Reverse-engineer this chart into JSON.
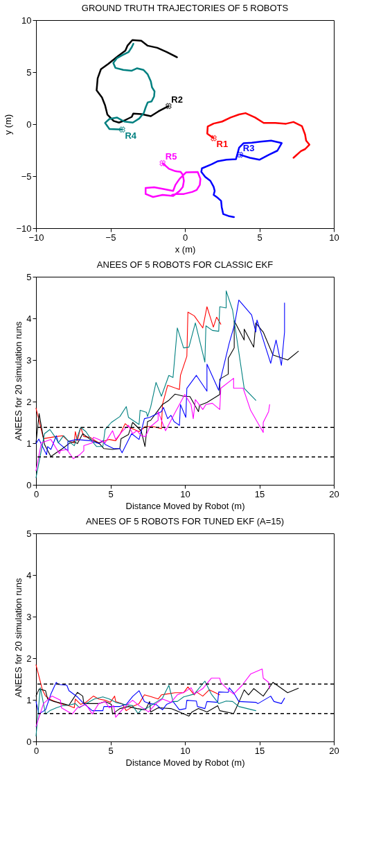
{
  "chart_data": [
    {
      "type": "line",
      "title": "GROUND TRUTH TRAJECTORIES OF 5 ROBOTS",
      "xlabel": "x (m)",
      "ylabel": "y (m)",
      "xlim": [
        -10,
        10
      ],
      "ylim": [
        -10,
        10
      ],
      "xticks": [
        -10,
        -5,
        0,
        5,
        10
      ],
      "yticks": [
        -10,
        -5,
        0,
        5,
        10
      ],
      "grid": false,
      "marker": "none",
      "line_style": "solid",
      "series": [
        {
          "name": "R1",
          "color": "#ff0000",
          "x": [
            1.93,
            1.5,
            1.53,
            1.93,
            2.5,
            3.07,
            3.64,
            4.07,
            4.71,
            5.29,
            6.07,
            6.79,
            7.29,
            7.86,
            8.07,
            8.14,
            8.36,
            8.07,
            7.79,
            7.29
          ],
          "values": [
            -1.35,
            -0.91,
            -0.23,
            0.06,
            0.25,
            0.64,
            0.93,
            1.06,
            0.64,
            0.12,
            0.12,
            0.04,
            0.21,
            -0.19,
            -1.0,
            -1.58,
            -1.97,
            -2.4,
            -2.59,
            -3.23
          ]
        },
        {
          "name": "R2",
          "color": "#000000",
          "x": [
            -1.1,
            -1.79,
            -2.29,
            -2.93,
            -3.47,
            -3.57,
            -4.07,
            -4.43,
            -4.79,
            -5.21,
            -5.36,
            -5.57,
            -5.93,
            -5.86,
            -5.64,
            -5.14,
            -4.5,
            -4.0,
            -3.86,
            -3.53,
            -2.93,
            -2.5,
            -1.86,
            -1.21,
            -0.53
          ],
          "values": [
            1.74,
            1.22,
            0.77,
            0.97,
            1.02,
            0.7,
            0.35,
            0.15,
            0.31,
            0.93,
            1.8,
            2.57,
            3.25,
            4.41,
            5.28,
            5.8,
            6.53,
            7.07,
            7.54,
            8.08,
            8.02,
            7.54,
            7.34,
            6.92,
            6.43
          ]
        },
        {
          "name": "R3",
          "color": "#0000ff",
          "x": [
            3.71,
            4.36,
            5.0,
            5.64,
            6.21,
            6.5,
            5.79,
            5.07,
            4.5,
            3.93,
            3.64,
            3.43,
            2.79,
            2.21,
            1.79,
            1.14,
            1.1,
            1.36,
            1.71,
            1.93,
            2.0,
            1.93,
            2.21,
            2.43,
            2.47,
            2.57,
            2.93,
            3.29
          ],
          "values": [
            -2.94,
            -3.23,
            -3.42,
            -2.94,
            -2.55,
            -1.82,
            -1.58,
            -1.68,
            -1.78,
            -1.84,
            -2.26,
            -3.36,
            -3.42,
            -3.56,
            -3.86,
            -4.25,
            -4.58,
            -5.06,
            -5.45,
            -6.03,
            -6.42,
            -6.8,
            -7.09,
            -7.38,
            -7.96,
            -8.64,
            -8.83,
            -8.93
          ]
        },
        {
          "name": "R4",
          "color": "#008080",
          "x": [
            -4.21,
            -5.07,
            -5.36,
            -5.07,
            -4.57,
            -4.07,
            -3.5,
            -3.07,
            -2.76,
            -2.64,
            -2.5,
            -2.24,
            -2.07,
            -2.04,
            -2.21,
            -2.29,
            -2.5,
            -2.79,
            -3.21,
            -3.57,
            -4.14,
            -4.67,
            -4.81,
            -4.57,
            -4.21,
            -3.79,
            -3.57,
            -3.46
          ],
          "values": [
            -0.52,
            -0.46,
            0.12,
            0.5,
            0.64,
            0.25,
            0.15,
            0.54,
            1.08,
            1.6,
            2.09,
            2.18,
            2.67,
            3.15,
            3.54,
            4.12,
            4.79,
            5.22,
            5.37,
            5.14,
            5.22,
            5.41,
            5.89,
            6.34,
            6.63,
            6.92,
            7.4,
            7.73
          ]
        },
        {
          "name": "R5",
          "color": "#ff00ff",
          "x": [
            -1.5,
            -1.07,
            -0.64,
            -0.29,
            -0.14,
            -0.07,
            -0.14,
            -0.36,
            -0.79,
            -1.5,
            -2.14,
            -2.64,
            -2.64,
            -2.07,
            -1.5,
            -0.79,
            -0.64,
            -0.36,
            0.07,
            0.86,
            1.04,
            1.0,
            0.79,
            0.5,
            -0.07,
            -0.57,
            -0.86
          ],
          "values": [
            -3.75,
            -4.29,
            -4.52,
            -4.58,
            -4.87,
            -5.45,
            -6.03,
            -6.42,
            -6.9,
            -6.8,
            -7.0,
            -6.71,
            -6.13,
            -6.07,
            -6.22,
            -6.42,
            -5.84,
            -5.26,
            -4.64,
            -4.6,
            -5.26,
            -5.84,
            -6.32,
            -6.51,
            -6.71,
            -6.71,
            -6.8
          ]
        }
      ]
    },
    {
      "type": "line",
      "title": "ANEES OF 5 ROBOTS FOR CLASSIC EKF",
      "xlabel": "Distance Moved by Robot (m)",
      "ylabel": "ANEES for 20 simulation runs",
      "xlim": [
        0,
        20
      ],
      "ylim": [
        0,
        5
      ],
      "xticks": [
        0,
        5,
        10,
        15,
        20
      ],
      "yticks": [
        0,
        1,
        2,
        3,
        4,
        5
      ],
      "grid": false,
      "marker": "none",
      "line_style": "solid",
      "ref_lines": [
        {
          "axis": "y",
          "value": 1.38,
          "color": "#000000",
          "line_style": "dashed"
        },
        {
          "axis": "y",
          "value": 0.67,
          "color": "#000000",
          "line_style": "dashed"
        }
      ],
      "series": [
        {
          "color": "#ff0000",
          "x": [
            0,
            0.5,
            1.36,
            1.78,
            2.14,
            2.57,
            2.64,
            2.78,
            3.0,
            3.21,
            3.64,
            4.21,
            4.49,
            4.92,
            5.35,
            5.63,
            5.99,
            6.28,
            6.92,
            7.35,
            7.85,
            8.42,
            8.49,
            8.84,
            9.63,
            9.7,
            10.13,
            10.2,
            10.63,
            11.2,
            11.48,
            11.91,
            12.13,
            12.41
          ],
          "values": [
            1.84,
            1.11,
            1.16,
            1.18,
            1.06,
            1.01,
            1.28,
            1.06,
            1.38,
            1.16,
            1.14,
            1.01,
            1.04,
            1.09,
            1.06,
            1.21,
            1.47,
            1.38,
            1.28,
            1.4,
            1.4,
            1.35,
            1.93,
            2.39,
            2.29,
            2.63,
            3.09,
            4.15,
            4.06,
            3.77,
            4.28,
            3.79,
            4.03,
            3.86
          ]
        },
        {
          "color": "#000000",
          "x": [
            0,
            0.21,
            0.57,
            1.0,
            1.36,
            1.78,
            2.21,
            2.57,
            2.78,
            3.14,
            3.64,
            4.21,
            4.56,
            5.14,
            5.63,
            5.71,
            6.21,
            6.49,
            7.06,
            7.32,
            7.49,
            7.7,
            8.2,
            8.49,
            8.92,
            9.34,
            9.91,
            10.34,
            10.91,
            10.98,
            11.48,
            12.34,
            12.34,
            12.91,
            12.91,
            13.31,
            13.31,
            13.98,
            13.98,
            14.62,
            14.76,
            15.26,
            15.91,
            16.9,
            17.62
          ],
          "values": [
            1.01,
            1.71,
            0.97,
            0.68,
            0.77,
            0.87,
            0.99,
            1.04,
            0.99,
            1.23,
            1.09,
            1.01,
            0.87,
            0.85,
            0.87,
            1.11,
            1.21,
            1.5,
            1.3,
            0.92,
            1.52,
            1.55,
            1.79,
            1.93,
            2.03,
            2.18,
            2.13,
            2.12,
            1.76,
            1.91,
            1.98,
            2.17,
            2.54,
            2.66,
            3.04,
            3.29,
            3.94,
            3.48,
            3.74,
            3.31,
            3.89,
            3.67,
            3.12,
            3.0,
            3.21
          ]
        },
        {
          "color": "#0000ff",
          "x": [
            0,
            0.19,
            0.71,
            0.78,
            1.0,
            1.36,
            1.5,
            2.14,
            2.14,
            2.71,
            3.64,
            4.21,
            4.49,
            4.64,
            5.21,
            5.63,
            5.78,
            6.42,
            6.92,
            7.28,
            7.63,
            8.42,
            8.56,
            8.84,
            9.06,
            9.27,
            9.63,
            9.7,
            10.06,
            10.13,
            10.77,
            11.48,
            11.48,
            12.27,
            12.34,
            12.98,
            13.34,
            13.62,
            14.48,
            14.76,
            14.84,
            15.76,
            16.12,
            16.48,
            16.69,
            16.69
          ],
          "values": [
            0.99,
            1.1,
            0.72,
            0.92,
            0.85,
            1.18,
            1.01,
            0.82,
            1.04,
            1.09,
            1.06,
            0.99,
            1.06,
            0.97,
            0.87,
            0.87,
            0.77,
            1.23,
            1.09,
            1.59,
            1.62,
            1.76,
            1.86,
            1.59,
            1.67,
            1.52,
            1.43,
            1.93,
            1.62,
            2.32,
            2.63,
            2.25,
            2.9,
            2.27,
            2.46,
            3.41,
            3.86,
            4.44,
            4.08,
            3.67,
            3.96,
            2.92,
            3.48,
            2.87,
            3.67,
            4.37
          ]
        },
        {
          "color": "#008080",
          "x": [
            0,
            0.57,
            0.93,
            1.36,
            1.5,
            1.85,
            2.21,
            2.57,
            3.0,
            3.35,
            3.85,
            4.07,
            4.49,
            4.64,
            5.06,
            5.63,
            6.06,
            6.21,
            6.92,
            6.99,
            7.42,
            7.49,
            7.7,
            8.06,
            8.42,
            8.92,
            9.2,
            9.49,
            9.91,
            10.27,
            10.7,
            11.34,
            11.41,
            11.84,
            12.27,
            12.34,
            12.77,
            12.77,
            13.2,
            13.98,
            14.76
          ],
          "values": [
            0.17,
            1.23,
            1.33,
            1.11,
            1.01,
            1.18,
            1.04,
            0.94,
            1.38,
            1.28,
            1.01,
            0.92,
            0.92,
            1.33,
            1.5,
            1.64,
            1.88,
            1.62,
            1.45,
            1.79,
            1.74,
            1.64,
            1.87,
            2.46,
            2.13,
            2.63,
            2.58,
            3.77,
            3.29,
            3.31,
            3.89,
            2.95,
            3.82,
            3.71,
            3.69,
            4.28,
            4.25,
            4.66,
            4.2,
            2.32,
            2.03
          ]
        },
        {
          "color": "#ff00ff",
          "x": [
            0,
            0.36,
            1.0,
            1.28,
            1.57,
            1.64,
            2.07,
            2.5,
            2.92,
            3.21,
            3.21,
            3.78,
            3.85,
            4.21,
            4.64,
            5.14,
            5.35,
            5.78,
            6.21,
            6.49,
            6.78,
            7.06,
            7.35,
            7.63,
            8.2,
            8.2,
            8.7,
            8.99,
            9.42,
            9.63,
            9.99,
            10.41,
            10.56,
            10.7,
            11.2,
            11.41,
            11.84,
            12.34,
            12.41,
            13.27,
            13.27,
            13.91,
            14.41,
            15.26,
            15.26,
            15.62,
            15.69
          ],
          "values": [
            0.34,
            1.01,
            1.09,
            0.92,
            0.75,
            0.82,
            0.85,
            0.63,
            0.72,
            0.82,
            0.94,
            1.01,
            1.14,
            1.09,
            1.01,
            1.3,
            1.09,
            1.28,
            1.43,
            1.23,
            1.3,
            1.18,
            1.16,
            1.38,
            1.55,
            1.76,
            1.3,
            1.5,
            1.79,
            1.93,
            2.17,
            1.93,
            1.59,
            2.05,
            1.81,
            1.93,
            1.96,
            1.81,
            2.32,
            2.56,
            2.32,
            2.32,
            1.79,
            1.26,
            1.5,
            1.76,
            1.93
          ]
        }
      ]
    },
    {
      "type": "line",
      "title": "ANEES OF 5 ROBOTS FOR TUNED EKF (A=15)",
      "xlabel": "Distance Moved by Robot (m)",
      "ylabel": "ANEES for 20 simulation runs",
      "xlim": [
        0,
        20
      ],
      "ylim": [
        0,
        5
      ],
      "xticks": [
        0,
        5,
        10,
        15,
        20
      ],
      "yticks": [
        0,
        1,
        2,
        3,
        4,
        5
      ],
      "grid": false,
      "marker": "none",
      "line_style": "solid",
      "ref_lines": [
        {
          "axis": "y",
          "value": 1.38,
          "color": "#000000",
          "line_style": "dashed"
        },
        {
          "axis": "y",
          "value": 0.67,
          "color": "#000000",
          "line_style": "dashed"
        }
      ],
      "series": [
        {
          "color": "#ff0000",
          "x": [
            0,
            0.43,
            0.64,
            1.07,
            1.64,
            2.21,
            2.57,
            2.64,
            3.0,
            3.35,
            3.85,
            4.21,
            4.64,
            4.99,
            5.28,
            5.35,
            5.78,
            6.06,
            6.49,
            6.92,
            7.28,
            7.77,
            8.2,
            8.42,
            8.77,
            9.34,
            9.91,
            10.2,
            10.63,
            10.77,
            11.2,
            11.63,
            12.34
          ],
          "values": [
            1.84,
            1.24,
            1.09,
            0.99,
            0.91,
            0.86,
            0.81,
            1.02,
            0.89,
            0.94,
            1.09,
            1.02,
            0.99,
            0.94,
            1.09,
            0.96,
            0.91,
            0.74,
            0.84,
            0.91,
            1.12,
            1.07,
            1.02,
            1.12,
            1.14,
            1.17,
            1.17,
            1.31,
            1.12,
            1.19,
            1.09,
            1.24,
            1.12
          ]
        },
        {
          "color": "#000000",
          "x": [
            0,
            0.21,
            0.64,
            0.78,
            1.21,
            1.78,
            2.21,
            2.43,
            2.78,
            3.14,
            3.21,
            3.64,
            4.21,
            4.64,
            5.06,
            5.14,
            5.63,
            6.21,
            6.78,
            7.35,
            7.63,
            7.7,
            8.2,
            8.63,
            9.06,
            9.63,
            10.27,
            10.48,
            10.91,
            11.48,
            12.2,
            12.34,
            13.27,
            13.62,
            13.98,
            14.27,
            14.62,
            15.26,
            15.91,
            16.9,
            17.62
          ],
          "values": [
            1.09,
            1.26,
            1.22,
            1.02,
            0.96,
            0.91,
            0.87,
            0.99,
            1.18,
            1.09,
            0.91,
            0.91,
            0.91,
            0.96,
            0.89,
            0.66,
            0.79,
            0.84,
            0.79,
            0.76,
            0.96,
            0.71,
            0.81,
            0.8,
            0.79,
            0.71,
            0.61,
            0.71,
            0.79,
            0.71,
            0.86,
            0.74,
            0.67,
            0.94,
            1.24,
            1.12,
            1.27,
            1.09,
            1.42,
            1.17,
            1.28
          ]
        },
        {
          "color": "#0000ff",
          "x": [
            0,
            0.19,
            0.64,
            1.0,
            1.36,
            1.5,
            2.07,
            2.21,
            2.78,
            3.21,
            3.78,
            4.49,
            4.56,
            5.06,
            5.63,
            6.06,
            6.49,
            6.92,
            7.28,
            7.63,
            8.06,
            8.49,
            8.77,
            9.2,
            9.63,
            10.06,
            10.13,
            10.77,
            10.84,
            11.34,
            11.48,
            12.2,
            12.27,
            12.91,
            12.98,
            13.27,
            13.62,
            14.76,
            14.91,
            15.76,
            15.98,
            16.48,
            16.69
          ],
          "values": [
            0.96,
            0.66,
            0.76,
            1.14,
            1.42,
            1.37,
            1.35,
            1.22,
            1.07,
            0.91,
            0.74,
            0.74,
            0.84,
            0.84,
            0.84,
            0.89,
            1.08,
            1.22,
            0.96,
            0.91,
            0.89,
            0.76,
            0.89,
            0.96,
            0.76,
            0.79,
            0.99,
            0.97,
            0.84,
            0.79,
            0.96,
            0.94,
            1.19,
            1.18,
            1.29,
            1.17,
            0.96,
            0.94,
            0.91,
            1.09,
            0.96,
            0.91,
            1.04
          ]
        },
        {
          "color": "#008080",
          "x": [
            0,
            0.29,
            0.64,
            0.93,
            1.36,
            1.78,
            2.21,
            2.64,
            2.92,
            3.35,
            3.92,
            4.49,
            4.92,
            5.35,
            5.92,
            6.49,
            6.85,
            7.06,
            7.49,
            7.92,
            8.49,
            8.92,
            9.2,
            9.49,
            9.91,
            10.63,
            11.34,
            11.77,
            12.27,
            12.77,
            13.2,
            13.62,
            14.19,
            14.76
          ],
          "values": [
            0.13,
            1.29,
            0.66,
            0.74,
            0.81,
            0.86,
            0.87,
            0.91,
            0.81,
            0.91,
            1.02,
            1.07,
            1.02,
            0.94,
            0.89,
            0.86,
            0.67,
            0.76,
            0.81,
            0.91,
            1.04,
            1.35,
            0.96,
            0.96,
            1.07,
            1.14,
            1.45,
            1.14,
            0.91,
            0.97,
            0.96,
            0.84,
            0.79,
            0.74
          ]
        },
        {
          "color": "#ff00ff",
          "x": [
            0,
            0.5,
            1.07,
            1.64,
            1.71,
            2.43,
            2.78,
            3.35,
            3.78,
            4.21,
            4.64,
            4.92,
            5.21,
            5.35,
            5.78,
            6.21,
            6.49,
            6.92,
            7.35,
            7.56,
            8.06,
            8.49,
            9.06,
            9.49,
            9.99,
            10.41,
            10.63,
            11.2,
            11.77,
            12.34,
            12.41,
            12.91,
            13.27,
            13.84,
            14.41,
            15.19,
            15.26,
            15.62,
            15.69
          ],
          "values": [
            0.36,
            0.91,
            1.09,
            0.99,
            0.81,
            0.66,
            0.81,
            0.89,
            0.66,
            0.91,
            0.96,
            0.81,
            0.86,
            0.58,
            0.76,
            0.91,
            0.99,
            0.86,
            0.76,
            0.71,
            0.91,
            1.02,
            0.94,
            1.12,
            1.19,
            1.29,
            1.14,
            1.27,
            1.52,
            1.52,
            1.42,
            1.24,
            1.14,
            1.35,
            1.62,
            1.74,
            1.52,
            1.42,
            1.27
          ]
        }
      ]
    }
  ]
}
